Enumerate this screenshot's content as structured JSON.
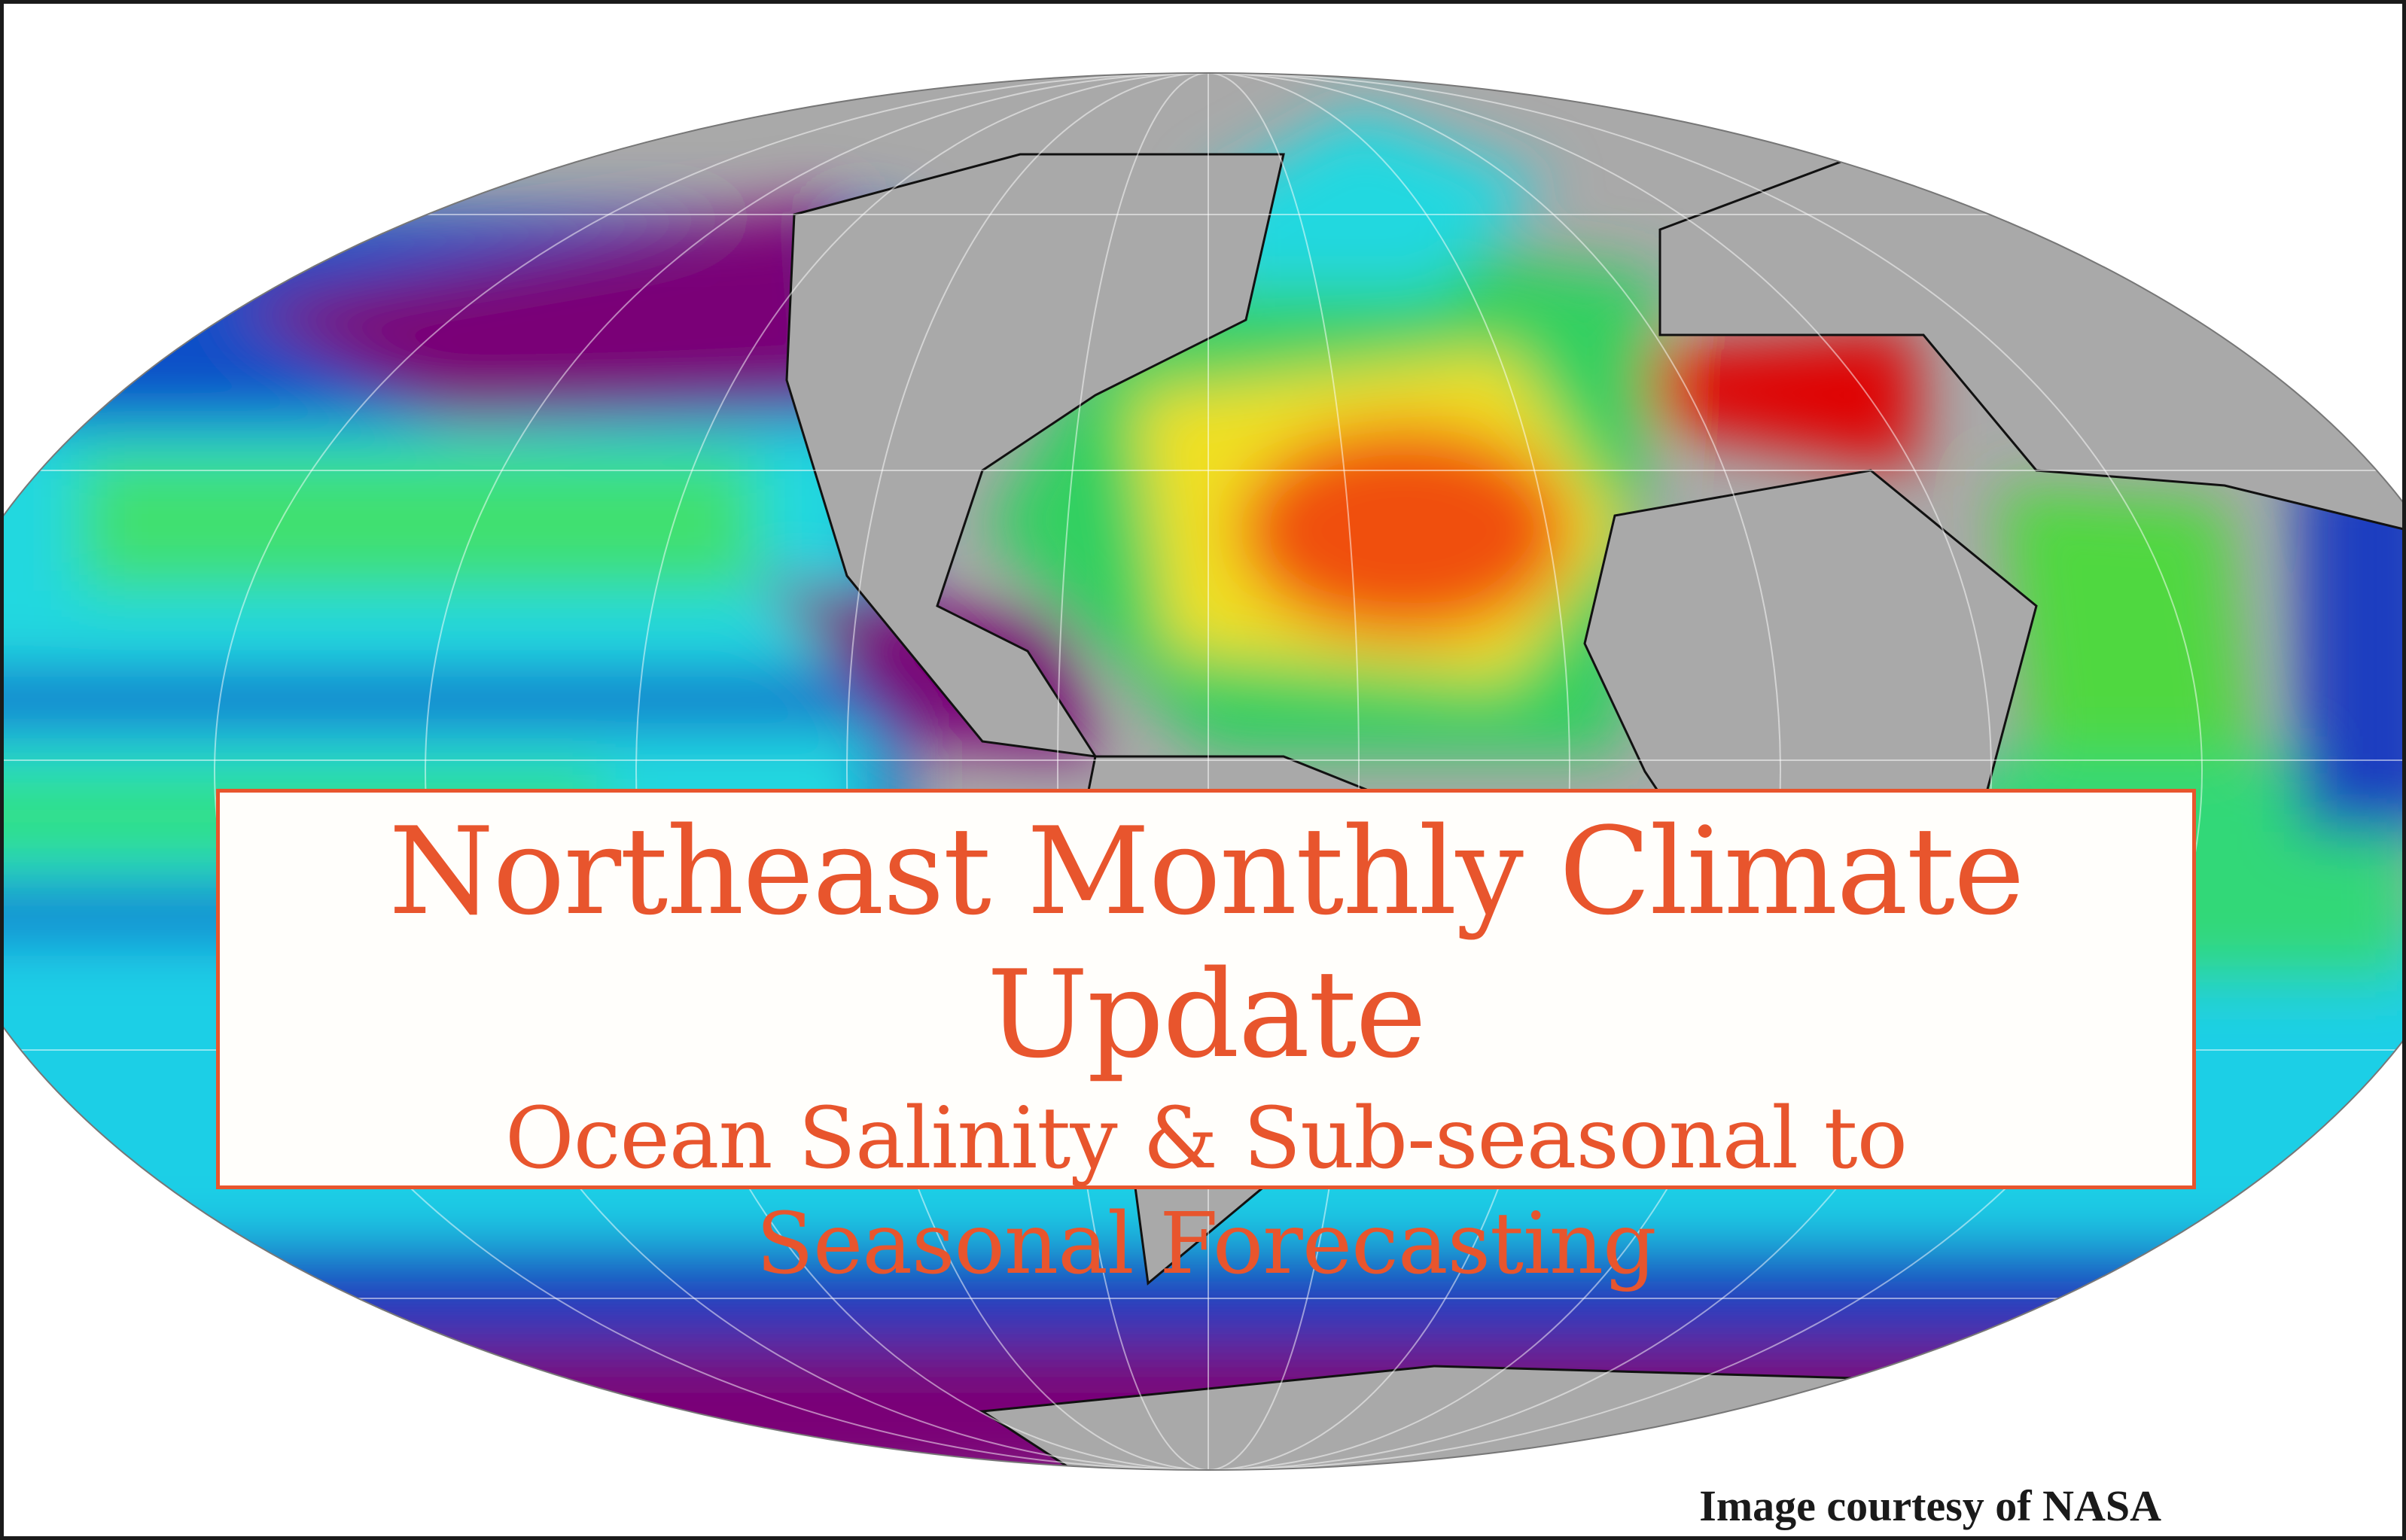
{
  "title": {
    "main": "Northeast Monthly Climate Update",
    "subtitle_line1": "Ocean Salinity & Sub-seasonal to",
    "subtitle_line2": "Seasonal Forecasting"
  },
  "credit": "Image courtesy of NASA",
  "colors": {
    "accent": "#e8552d",
    "land": "#a9a9a9",
    "low_salinity": "#7a0077",
    "high_salinity": "#e00000"
  }
}
